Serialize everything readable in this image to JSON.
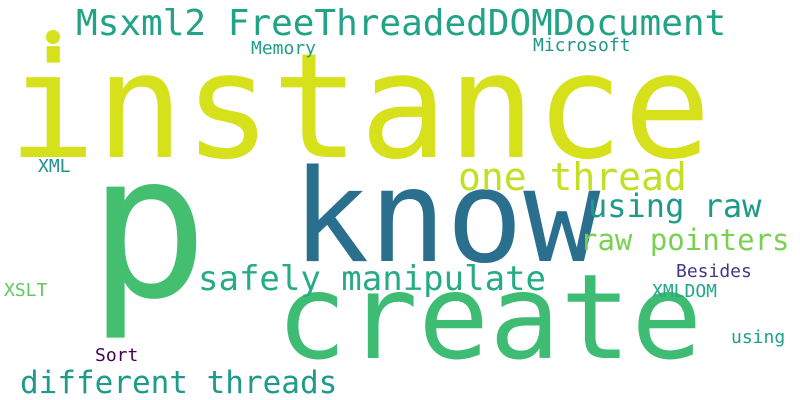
{
  "words": {
    "instance": {
      "text": "instance",
      "color": "#d6e01b"
    },
    "p": {
      "text": "p",
      "color": "#44bf70"
    },
    "know": {
      "text": "know",
      "color": "#2a6f8e"
    },
    "create": {
      "text": "create",
      "color": "#3fbc73"
    },
    "msxml": {
      "text": "Msxml2 FreeThreadedDOMDocument",
      "color": "#20a386"
    },
    "one_thread": {
      "text": "one thread",
      "color": "#c2df23"
    },
    "using_raw": {
      "text": "using raw",
      "color": "#1f9a8a"
    },
    "raw_pointers": {
      "text": "raw pointers",
      "color": "#7ad151"
    },
    "safely_manipulate": {
      "text": "safely manipulate",
      "color": "#25ac82"
    },
    "different_threads": {
      "text": "different threads",
      "color": "#1e9b8a"
    },
    "memory": {
      "text": "Memory",
      "color": "#1fa088"
    },
    "microsoft": {
      "text": "Microsoft",
      "color": "#1f958b"
    },
    "xml": {
      "text": "XML",
      "color": "#21918c"
    },
    "xslt": {
      "text": "XSLT",
      "color": "#5ec962"
    },
    "besides": {
      "text": "Besides",
      "color": "#453882"
    },
    "xmldom": {
      "text": "XMLDOM",
      "color": "#22a884"
    },
    "using": {
      "text": "using",
      "color": "#1f9e89"
    },
    "sort": {
      "text": "Sort",
      "color": "#440154"
    }
  },
  "dot_color": "#d6e01b"
}
